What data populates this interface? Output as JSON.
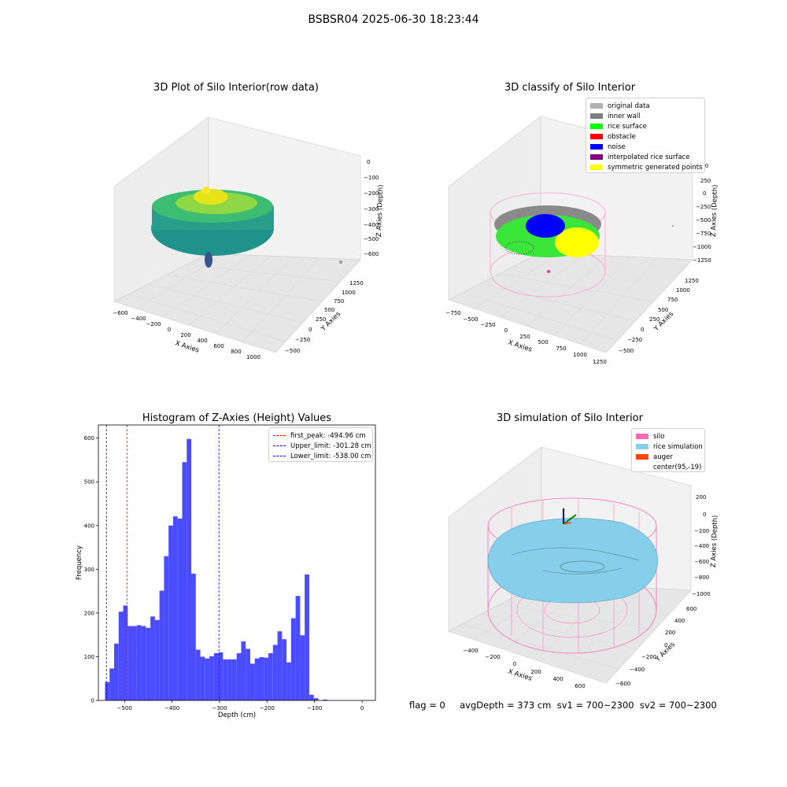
{
  "suptitle": "BSBSR04 2025-06-30 18:23:44",
  "panels": {
    "raw": {
      "title": "3D Plot of Silo Interior(row data)",
      "xlabel": "X Axies",
      "ylabel": "Y Axies",
      "zlabel": "Z Axies (Depth)",
      "xticks": [
        "−600",
        "−400",
        "−200",
        "0",
        "200",
        "400",
        "600",
        "800",
        "1000"
      ],
      "yticks": [
        "−500",
        "−250",
        "0",
        "250",
        "500",
        "750",
        "1000",
        "1250"
      ],
      "zticks": [
        "0",
        "−100",
        "−200",
        "−300",
        "−400",
        "−500",
        "−600"
      ],
      "colormap": [
        "#fde725",
        "#5ec962",
        "#21918c",
        "#3b528b",
        "#440154"
      ]
    },
    "classify": {
      "title": "3D classify of Silo Interior",
      "xlabel": "X Axies",
      "ylabel": "Y Axies",
      "zlabel": "Z Axies (Depth)",
      "xticks": [
        "−750",
        "−500",
        "−250",
        "0",
        "250",
        "500",
        "750",
        "1000",
        "1250"
      ],
      "yticks": [
        "−500",
        "−250",
        "0",
        "250",
        "500",
        "750",
        "1000",
        "1250"
      ],
      "zticks": [
        "500",
        "250",
        "0",
        "−250",
        "−500",
        "−750",
        "−1000",
        "−1250"
      ],
      "legend": [
        {
          "label": "original data",
          "color": "#b0b0b0"
        },
        {
          "label": "inner wall",
          "color": "#808080"
        },
        {
          "label": "rice surface",
          "color": "#00ff00"
        },
        {
          "label": "obstacle",
          "color": "#ff0000"
        },
        {
          "label": "noise",
          "color": "#0000ff"
        },
        {
          "label": "interpolated rice surface",
          "color": "#800080"
        },
        {
          "label": "symmetric generated points",
          "color": "#ffff00"
        }
      ]
    },
    "histogram": {
      "title": "Histogram of Z-Axies (Height) Values",
      "legend": [
        {
          "label": "first_peak: -494.96 cm",
          "color": "#ff0000"
        },
        {
          "label": "Upper_limit: -301.28 cm",
          "color": "#0000ff"
        },
        {
          "label": "Lower_limit: -538.00 cm",
          "color": "#0000ff"
        }
      ]
    },
    "simulation": {
      "title": "3D simulation of Silo Interior",
      "xlabel": "X Axies",
      "ylabel": "Y Axies",
      "zlabel": "Z Axies (Depth)",
      "xticks": [
        "−400",
        "−200",
        "0",
        "200",
        "400",
        "600"
      ],
      "yticks": [
        "−600",
        "−400",
        "−200",
        "0",
        "200",
        "400",
        "600"
      ],
      "zticks": [
        "200",
        "0",
        "−200",
        "−400",
        "−600",
        "−800",
        "−1000"
      ],
      "legend": [
        {
          "label": "silo",
          "color": "#ff69b4"
        },
        {
          "label": "rice simulation",
          "color": "#87ceeb"
        },
        {
          "label": "auger",
          "color": "#ff4500"
        },
        {
          "label": "center(95,-19)",
          "color": "#ffffff"
        }
      ]
    }
  },
  "footer": "flag = 0     avgDepth = 373 cm  sv1 = 700~2300  sv2 = 700~2300",
  "chart_data": [
    {
      "type": "scatter",
      "title": "3D Plot of Silo Interior(row data)",
      "xlabel": "X Axies",
      "ylabel": "Y Axies",
      "zlabel": "Z Axies (Depth)",
      "xlim": [
        -600,
        1000
      ],
      "ylim": [
        -500,
        1250
      ],
      "zlim": [
        -600,
        0
      ]
    },
    {
      "type": "scatter",
      "title": "3D classify of Silo Interior",
      "xlabel": "X Axies",
      "ylabel": "Y Axies",
      "zlabel": "Z Axies (Depth)",
      "xlim": [
        -750,
        1250
      ],
      "ylim": [
        -500,
        1250
      ],
      "zlim": [
        -1250,
        500
      ]
    },
    {
      "type": "bar",
      "title": "Histogram of Z-Axies (Height) Values",
      "xlabel": "Depth (cm)",
      "ylabel": "Frequency",
      "xlim": [
        -555,
        28
      ],
      "ylim": [
        0,
        630
      ],
      "xticks": [
        -500,
        -400,
        -300,
        -200,
        -100,
        0
      ],
      "yticks": [
        0,
        100,
        200,
        300,
        400,
        500,
        600
      ],
      "bin_start": -541,
      "bin_width": 9.55,
      "values": [
        42,
        73,
        130,
        203,
        217,
        170,
        170,
        172,
        170,
        166,
        192,
        184,
        251,
        330,
        400,
        421,
        416,
        545,
        598,
        290,
        116,
        100,
        96,
        101,
        108,
        110,
        94,
        94,
        94,
        108,
        135,
        118,
        84,
        96,
        99,
        98,
        108,
        127,
        158,
        140,
        87,
        188,
        239,
        149,
        288,
        13,
        5,
        0,
        2
      ],
      "vlines": [
        {
          "name": "first_peak: -494.96 cm",
          "x": -494.96,
          "color": "#ff0000"
        },
        {
          "name": "Upper_limit: -301.28 cm",
          "x": -301.28,
          "color": "#0000ff"
        },
        {
          "name": "Lower_limit: -538.00 cm",
          "x": -538.0,
          "color": "#0000ff"
        }
      ],
      "color": "#4b4bff"
    },
    {
      "type": "scatter",
      "title": "3D simulation of Silo Interior",
      "xlabel": "X Axies",
      "ylabel": "Y Axies",
      "zlabel": "Z Axies (Depth)",
      "xlim": [
        -400,
        600
      ],
      "ylim": [
        -600,
        600
      ],
      "zlim": [
        -1000,
        200
      ]
    }
  ]
}
